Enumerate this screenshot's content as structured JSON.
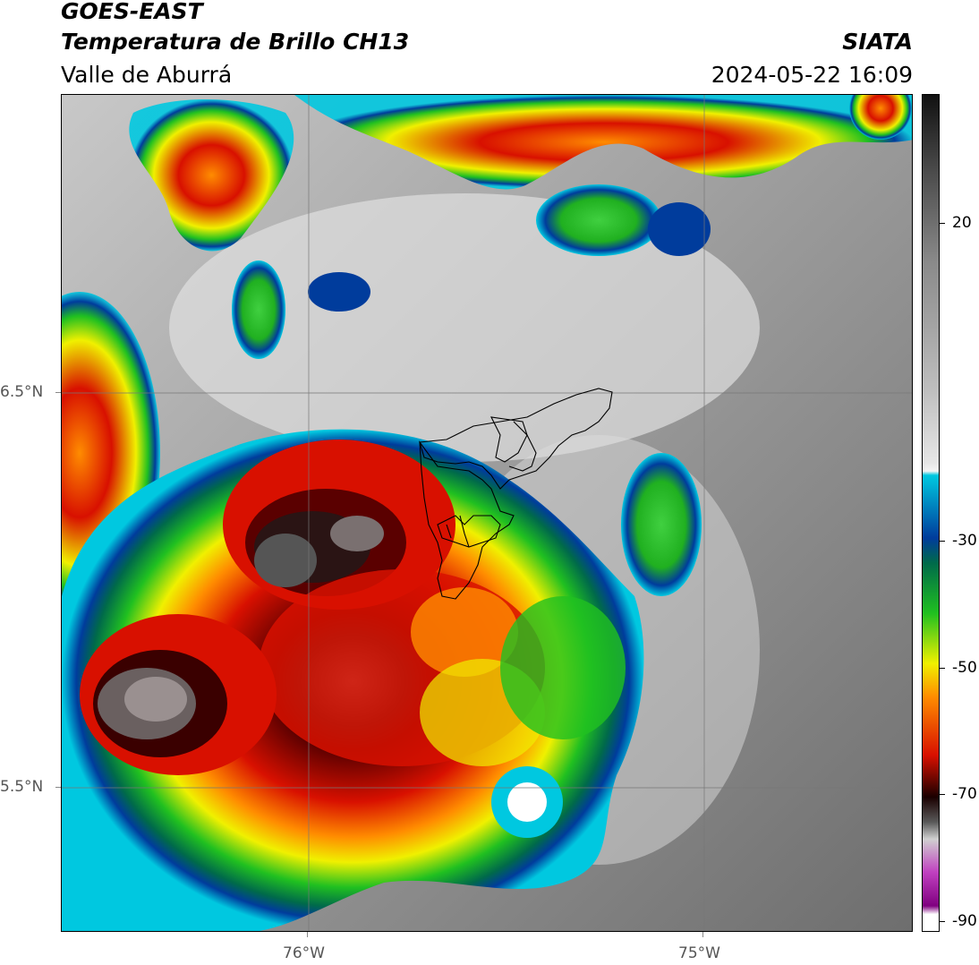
{
  "header": {
    "satellite": "GOES-EAST",
    "product": "Temperatura de Brillo CH13",
    "region": "Valle de Aburrá",
    "agency": "SIATA",
    "datetime": "2024-05-22 16:09"
  },
  "map": {
    "lat_labels": [
      "6.5°N",
      "5.5°N"
    ],
    "lon_labels": [
      "76°W",
      "75°W"
    ]
  },
  "colorbar": {
    "tick_labels": [
      "20",
      "-30",
      "-50",
      "-70",
      "-90"
    ],
    "colors": {
      "warm_gray": "#8a8a8a",
      "light": "#e6e6e6",
      "cyan": "#00c8e0",
      "blue": "#003c9c",
      "green": "#20c020",
      "yellow": "#f0f000",
      "orange": "#ff8c00",
      "red": "#d81000",
      "dark": "#1a0000",
      "magenta": "#c040c0"
    }
  }
}
